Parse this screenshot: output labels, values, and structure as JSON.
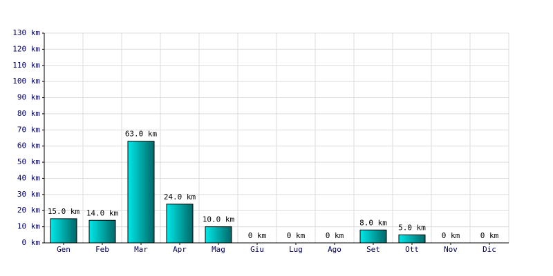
{
  "chart_data": {
    "type": "bar",
    "categories": [
      "Gen",
      "Feb",
      "Mar",
      "Apr",
      "Mag",
      "Giu",
      "Lug",
      "Ago",
      "Set",
      "Ott",
      "Nov",
      "Dic"
    ],
    "values": [
      15,
      14,
      63,
      24,
      10,
      0,
      0,
      0,
      8,
      5,
      0,
      0
    ],
    "value_labels": [
      "15.0 km",
      "14.0 km",
      "63.0 km",
      "24.0 km",
      "10.0 km",
      "0 km",
      "0 km",
      "0 km",
      "8.0 km",
      "5.0 km",
      "0 km",
      "0 km"
    ],
    "color": "#00e8e8",
    "ylim": [
      0,
      130
    ],
    "yticks": [
      {
        "value": 0,
        "label": "0 km"
      },
      {
        "value": 10,
        "label": "10 km"
      },
      {
        "value": 20,
        "label": "20 km"
      },
      {
        "value": 30,
        "label": "30 km"
      },
      {
        "value": 40,
        "label": "40 km"
      },
      {
        "value": 50,
        "label": "50 km"
      },
      {
        "value": 60,
        "label": "60 km"
      },
      {
        "value": 70,
        "label": "70 km"
      },
      {
        "value": 80,
        "label": "80 km"
      },
      {
        "value": 90,
        "label": "90 km"
      },
      {
        "value": 100,
        "label": "100 km"
      },
      {
        "value": 110,
        "label": "110 km"
      },
      {
        "value": 120,
        "label": "120 km"
      },
      {
        "value": 130,
        "label": "130 km"
      }
    ],
    "grid": true
  }
}
